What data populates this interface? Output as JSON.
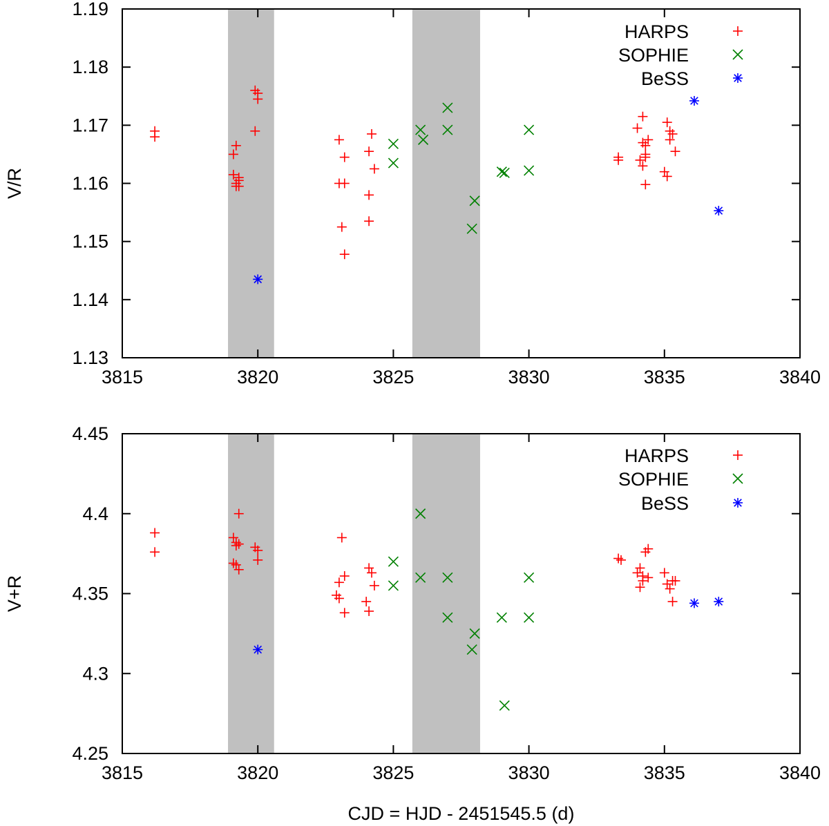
{
  "chart_data": [
    {
      "type": "scatter",
      "id": "top",
      "xlabel": "",
      "ylabel": "V/R",
      "xlim": [
        3815,
        3840
      ],
      "ylim": [
        1.13,
        1.19
      ],
      "xticks": [
        3815,
        3820,
        3825,
        3830,
        3835,
        3840
      ],
      "xtick_labels": [
        "3815",
        "3820",
        "3825",
        "3830",
        "3835",
        "3840"
      ],
      "yticks": [
        1.13,
        1.14,
        1.15,
        1.16,
        1.17,
        1.18,
        1.19
      ],
      "ytick_labels": [
        "1.13",
        "1.14",
        "1.15",
        "1.16",
        "1.17",
        "1.18",
        "1.19"
      ],
      "shaded_ranges": [
        [
          3818.9,
          3820.6
        ],
        [
          3825.7,
          3828.2
        ]
      ],
      "legend_position": "top-right",
      "series": [
        {
          "name": "HARPS",
          "marker": "plus",
          "color": "#ff0000",
          "points": [
            [
              3816.2,
              1.169
            ],
            [
              3816.2,
              1.168
            ],
            [
              3819.1,
              1.1615
            ],
            [
              3819.1,
              1.165
            ],
            [
              3819.2,
              1.1665
            ],
            [
              3819.2,
              1.1595
            ],
            [
              3819.2,
              1.16
            ],
            [
              3819.3,
              1.161
            ],
            [
              3819.3,
              1.1605
            ],
            [
              3819.3,
              1.1595
            ],
            [
              3819.9,
              1.176
            ],
            [
              3820.0,
              1.1745
            ],
            [
              3820.0,
              1.1755
            ],
            [
              3819.9,
              1.169
            ],
            [
              3823.0,
              1.1675
            ],
            [
              3823.0,
              1.16
            ],
            [
              3823.2,
              1.1645
            ],
            [
              3823.1,
              1.1525
            ],
            [
              3823.2,
              1.1478
            ],
            [
              3823.2,
              1.16
            ],
            [
              3824.1,
              1.1655
            ],
            [
              3824.2,
              1.1685
            ],
            [
              3824.3,
              1.1625
            ],
            [
              3824.1,
              1.158
            ],
            [
              3824.1,
              1.1535
            ],
            [
              3833.3,
              1.1645
            ],
            [
              3833.3,
              1.164
            ],
            [
              3834.0,
              1.1695
            ],
            [
              3834.2,
              1.1715
            ],
            [
              3834.2,
              1.167
            ],
            [
              3834.3,
              1.1665
            ],
            [
              3834.4,
              1.1675
            ],
            [
              3834.3,
              1.165
            ],
            [
              3834.3,
              1.1645
            ],
            [
              3834.1,
              1.164
            ],
            [
              3834.2,
              1.163
            ],
            [
              3834.3,
              1.1598
            ],
            [
              3835.1,
              1.1705
            ],
            [
              3835.2,
              1.169
            ],
            [
              3835.2,
              1.1675
            ],
            [
              3835.3,
              1.1685
            ],
            [
              3835.0,
              1.162
            ],
            [
              3835.1,
              1.1612
            ],
            [
              3835.4,
              1.1655
            ]
          ]
        },
        {
          "name": "SOPHIE",
          "marker": "cross",
          "color": "#008000",
          "points": [
            [
              3825.0,
              1.1635
            ],
            [
              3825.0,
              1.1668
            ],
            [
              3826.0,
              1.1692
            ],
            [
              3826.1,
              1.1675
            ],
            [
              3827.0,
              1.173
            ],
            [
              3827.0,
              1.1692
            ],
            [
              3828.0,
              1.157
            ],
            [
              3827.9,
              1.1522
            ],
            [
              3829.0,
              1.162
            ],
            [
              3829.1,
              1.1618
            ],
            [
              3830.0,
              1.1692
            ],
            [
              3830.0,
              1.1622
            ]
          ]
        },
        {
          "name": "BeSS",
          "marker": "star",
          "color": "#0000ff",
          "points": [
            [
              3820.0,
              1.1435
            ],
            [
              3836.1,
              1.1742
            ],
            [
              3837.0,
              1.1553
            ]
          ]
        }
      ]
    },
    {
      "type": "scatter",
      "id": "bottom",
      "xlabel": "CJD = HJD - 2451545.5 (d)",
      "ylabel": "V+R",
      "xlim": [
        3815,
        3840
      ],
      "ylim": [
        4.25,
        4.45
      ],
      "xticks": [
        3815,
        3820,
        3825,
        3830,
        3835,
        3840
      ],
      "xtick_labels": [
        "3815",
        "3820",
        "3825",
        "3830",
        "3835",
        "3840"
      ],
      "yticks": [
        4.25,
        4.3,
        4.35,
        4.4,
        4.45
      ],
      "ytick_labels": [
        "4.25",
        "4.3",
        "4.35",
        "4.4",
        "4.45"
      ],
      "shaded_ranges": [
        [
          3818.9,
          3820.6
        ],
        [
          3825.7,
          3828.2
        ]
      ],
      "legend_position": "top-right",
      "series": [
        {
          "name": "HARPS",
          "marker": "plus",
          "color": "#ff0000",
          "points": [
            [
              3816.2,
              4.388
            ],
            [
              3816.2,
              4.376
            ],
            [
              3819.1,
              4.385
            ],
            [
              3819.2,
              4.382
            ],
            [
              3819.3,
              4.4
            ],
            [
              3819.2,
              4.38
            ],
            [
              3819.3,
              4.381
            ],
            [
              3819.1,
              4.369
            ],
            [
              3819.2,
              4.368
            ],
            [
              3819.3,
              4.365
            ],
            [
              3819.9,
              4.379
            ],
            [
              3820.0,
              4.377
            ],
            [
              3820.0,
              4.371
            ],
            [
              3822.9,
              4.349
            ],
            [
              3823.0,
              4.347
            ],
            [
              3823.0,
              4.357
            ],
            [
              3823.2,
              4.361
            ],
            [
              3823.1,
              4.385
            ],
            [
              3823.2,
              4.338
            ],
            [
              3824.1,
              4.366
            ],
            [
              3824.2,
              4.363
            ],
            [
              3824.3,
              4.355
            ],
            [
              3824.0,
              4.345
            ],
            [
              3824.1,
              4.339
            ],
            [
              3833.3,
              4.372
            ],
            [
              3833.4,
              4.371
            ],
            [
              3834.0,
              4.363
            ],
            [
              3834.1,
              4.366
            ],
            [
              3834.2,
              4.361
            ],
            [
              3834.2,
              4.358
            ],
            [
              3834.1,
              4.354
            ],
            [
              3834.3,
              4.376
            ],
            [
              3834.4,
              4.378
            ],
            [
              3834.4,
              4.36
            ],
            [
              3835.0,
              4.363
            ],
            [
              3835.1,
              4.356
            ],
            [
              3835.2,
              4.353
            ],
            [
              3835.3,
              4.358
            ],
            [
              3835.4,
              4.358
            ],
            [
              3835.3,
              4.345
            ]
          ]
        },
        {
          "name": "SOPHIE",
          "marker": "cross",
          "color": "#008000",
          "points": [
            [
              3825.0,
              4.37
            ],
            [
              3825.0,
              4.355
            ],
            [
              3826.0,
              4.4
            ],
            [
              3826.0,
              4.36
            ],
            [
              3827.0,
              4.36
            ],
            [
              3827.0,
              4.335
            ],
            [
              3828.0,
              4.325
            ],
            [
              3827.9,
              4.315
            ],
            [
              3829.0,
              4.335
            ],
            [
              3829.1,
              4.28
            ],
            [
              3830.0,
              4.36
            ],
            [
              3830.0,
              4.335
            ]
          ]
        },
        {
          "name": "BeSS",
          "marker": "star",
          "color": "#0000ff",
          "points": [
            [
              3820.0,
              4.315
            ],
            [
              3836.1,
              4.344
            ],
            [
              3837.0,
              4.345
            ]
          ]
        }
      ]
    }
  ],
  "colors": {
    "shade": "#c0c0c0",
    "axis": "#000000"
  }
}
